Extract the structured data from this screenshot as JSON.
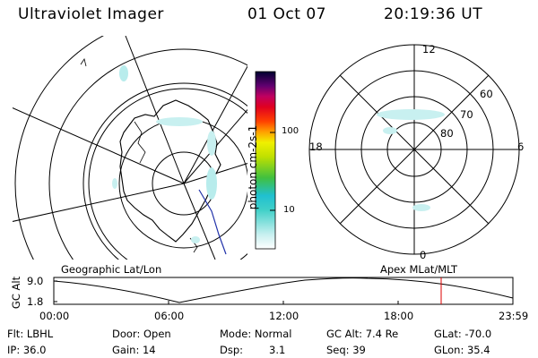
{
  "header": {
    "title": "Ultraviolet Imager",
    "date": "01 Oct 07",
    "time": "20:19:36 UT"
  },
  "colorbar": {
    "label": "photon cm-2s-1",
    "ticks": [
      "100",
      "10"
    ]
  },
  "polar_plot": {
    "mlt_labels": [
      "12",
      "6",
      "0",
      "18"
    ],
    "lat_labels": [
      "60",
      "70",
      "80"
    ]
  },
  "panel_labels": {
    "left": "Geographic Lat/Lon",
    "right": "Apex MLat/MLT"
  },
  "altitude_plot": {
    "axis_label": "GC Alt",
    "y_ticks": [
      "9.0",
      "1.8"
    ],
    "x_ticks": [
      "00:00",
      "06:00",
      "12:00",
      "18:00",
      "23:59"
    ],
    "marker_color": "#dd0000"
  },
  "info": {
    "flt": "Flt: LBHL",
    "door": "Door: Open",
    "mode": "Mode: Normal",
    "gc_alt": "GC Alt: 7.4 Re",
    "glat": "GLat: -70.0",
    "ip": "IP: 36.0",
    "gain": "Gain: 14",
    "dsp_label": "Dsp:",
    "dsp_value": "3.1",
    "seq": "Seq: 39",
    "glon": "GLon:  35.4"
  },
  "colors": {
    "aurora": "#b8ecec",
    "coast": "#000000",
    "track": "#2233aa"
  }
}
